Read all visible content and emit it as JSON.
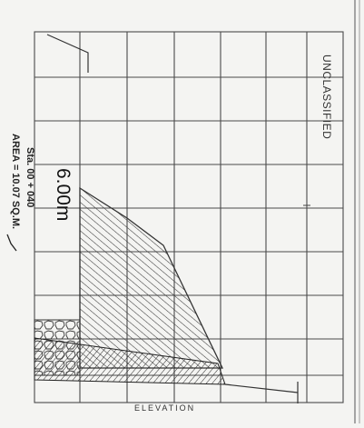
{
  "stamp": "UNCLASSIFIED",
  "dimension_label": "6.00m",
  "axis_label": "ELEVATION",
  "station_label": "Sta. 00 + 040",
  "area_label": "AREA = 10.07 SQ.M."
}
